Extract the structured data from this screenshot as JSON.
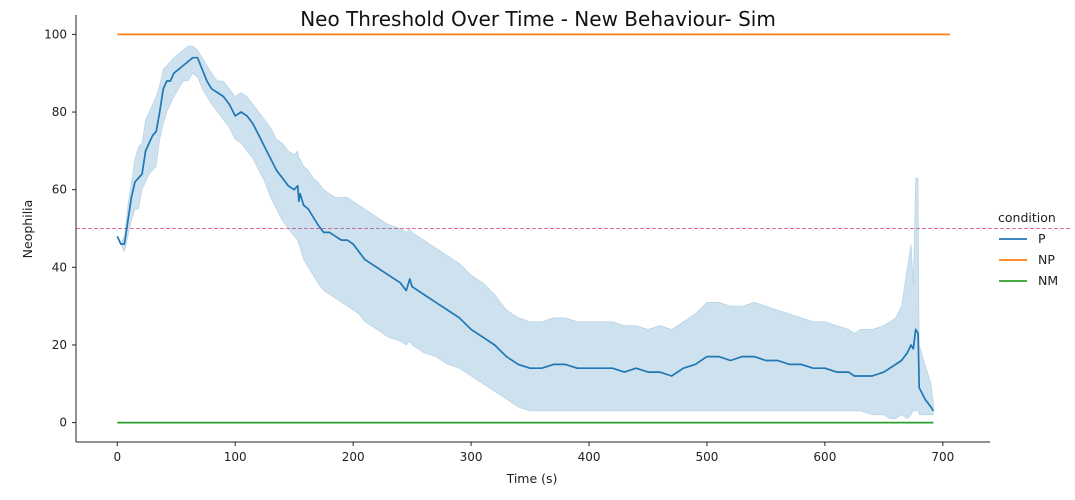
{
  "chart_data": {
    "type": "line",
    "title": "Neo Threshold Over Time - New Behaviour- Sim",
    "xlabel": "Time (s)",
    "ylabel": "Neophilia",
    "xlim": [
      -35,
      740
    ],
    "ylim": [
      -5,
      105
    ],
    "xticks": [
      0,
      100,
      200,
      300,
      400,
      500,
      600,
      700
    ],
    "yticks": [
      0,
      20,
      40,
      60,
      80,
      100
    ],
    "grid": false,
    "legend": {
      "title": "condition",
      "placement": "right"
    },
    "reference_line": {
      "y": 50,
      "style": "dashed",
      "color": "#e8719a"
    },
    "band_color": "#1f77b4",
    "series": [
      {
        "name": "P",
        "color": "#1f77b4",
        "x": [
          0,
          3,
          6,
          9,
          12,
          15,
          18,
          21,
          24,
          27,
          30,
          33,
          36,
          39,
          42,
          45,
          48,
          52,
          56,
          60,
          64,
          68,
          72,
          76,
          80,
          85,
          90,
          95,
          100,
          105,
          110,
          115,
          120,
          125,
          130,
          135,
          140,
          145,
          150,
          153,
          154,
          155,
          158,
          162,
          166,
          170,
          175,
          180,
          185,
          190,
          195,
          200,
          205,
          210,
          220,
          230,
          240,
          245,
          248,
          250,
          255,
          260,
          270,
          280,
          290,
          300,
          310,
          320,
          330,
          340,
          350,
          360,
          370,
          380,
          390,
          400,
          410,
          420,
          430,
          440,
          450,
          460,
          470,
          480,
          490,
          500,
          510,
          520,
          530,
          540,
          550,
          560,
          570,
          580,
          590,
          600,
          610,
          620,
          625,
          630,
          640,
          650,
          655,
          660,
          665,
          670,
          673,
          675,
          677,
          679,
          680,
          685,
          690,
          692
        ],
        "y": [
          48,
          46,
          46,
          52,
          58,
          62,
          63,
          64,
          70,
          72,
          74,
          75,
          80,
          86,
          88,
          88,
          90,
          91,
          92,
          93,
          94,
          94,
          91,
          88,
          86,
          85,
          84,
          82,
          79,
          80,
          79,
          77,
          74,
          71,
          68,
          65,
          63,
          61,
          60,
          61,
          57,
          59,
          56,
          55,
          53,
          51,
          49,
          49,
          48,
          47,
          47,
          46,
          44,
          42,
          40,
          38,
          36,
          34,
          37,
          35,
          34,
          33,
          31,
          29,
          27,
          24,
          22,
          20,
          17,
          15,
          14,
          14,
          15,
          15,
          14,
          14,
          14,
          14,
          13,
          14,
          13,
          13,
          12,
          14,
          15,
          17,
          17,
          16,
          17,
          17,
          16,
          16,
          15,
          15,
          14,
          14,
          13,
          13,
          12,
          12,
          12,
          13,
          14,
          15,
          16,
          18,
          20,
          19,
          24,
          23,
          9,
          6,
          4,
          3
        ],
        "lower": [
          48,
          46,
          44,
          48,
          52,
          55,
          55,
          60,
          62,
          64,
          65,
          66,
          73,
          77,
          80,
          82,
          84,
          86,
          88,
          88,
          90,
          89,
          86,
          84,
          82,
          80,
          78,
          76,
          73,
          72,
          70,
          68,
          65,
          62,
          58,
          55,
          52,
          50,
          48,
          47,
          46,
          45,
          42,
          40,
          38,
          36,
          34,
          33,
          32,
          31,
          30,
          29,
          28,
          26,
          24,
          22,
          21,
          20,
          21,
          20,
          19,
          18,
          17,
          15,
          14,
          12,
          10,
          8,
          6,
          4,
          3,
          3,
          3,
          3,
          3,
          3,
          3,
          3,
          3,
          3,
          3,
          3,
          3,
          3,
          3,
          3,
          3,
          3,
          3,
          3,
          3,
          3,
          3,
          3,
          3,
          3,
          3,
          3,
          3,
          3,
          2,
          2,
          1,
          1,
          2,
          1,
          2,
          3,
          3,
          3,
          2,
          2,
          2,
          2
        ],
        "upper": [
          48,
          46,
          48,
          56,
          62,
          68,
          71,
          72,
          78,
          80,
          82,
          84,
          87,
          91,
          92,
          93,
          94,
          95,
          96,
          97,
          97,
          96,
          94,
          92,
          90,
          88,
          88,
          86,
          84,
          85,
          84,
          82,
          80,
          78,
          76,
          73,
          72,
          70,
          69,
          70,
          68,
          68,
          66,
          65,
          63,
          62,
          60,
          59,
          58,
          58,
          58,
          57,
          56,
          55,
          53,
          51,
          50,
          49,
          50,
          49,
          48,
          47,
          45,
          43,
          41,
          38,
          36,
          33,
          29,
          27,
          26,
          26,
          27,
          27,
          26,
          26,
          26,
          26,
          25,
          25,
          24,
          25,
          24,
          26,
          28,
          31,
          31,
          30,
          30,
          31,
          30,
          29,
          28,
          27,
          26,
          26,
          25,
          24,
          23,
          24,
          24,
          25,
          26,
          27,
          30,
          40,
          46,
          36,
          63,
          63,
          20,
          15,
          10,
          5
        ]
      },
      {
        "name": "NP",
        "color": "#ff7f0e",
        "x": [
          0,
          706
        ],
        "y": [
          100,
          100
        ]
      },
      {
        "name": "NM",
        "color": "#2ca02c",
        "x": [
          0,
          692
        ],
        "y": [
          0,
          0
        ]
      }
    ]
  }
}
